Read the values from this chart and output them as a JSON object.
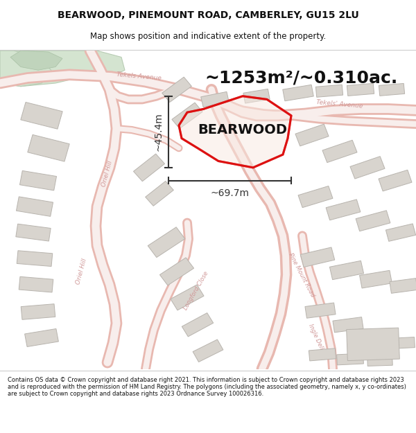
{
  "title": "BEARWOOD, PINEMOUNT ROAD, CAMBERLEY, GU15 2LU",
  "subtitle": "Map shows position and indicative extent of the property.",
  "footer": "Contains OS data © Crown copyright and database right 2021. This information is subject to Crown copyright and database rights 2023 and is reproduced with the permission of HM Land Registry. The polygons (including the associated geometry, namely x, y co-ordinates) are subject to Crown copyright and database rights 2023 Ordnance Survey 100026316.",
  "area_label": "~1253m²/~0.310ac.",
  "property_name": "BEARWOOD",
  "dim1_label": "~45.4m",
  "dim2_label": "~69.7m",
  "map_bg": "#ffffff",
  "road_outline_color": "#e8b8b0",
  "road_fill_color": "#f8eeec",
  "building_fill": "#d8d4ce",
  "building_edge": "#b8b4ae",
  "property_edge": "#dd1111",
  "property_fill": "none",
  "dim_color": "#333333",
  "text_color": "#111111",
  "green_fill": "#d4e4d0",
  "green_edge": "#b8ccb4",
  "road_label_color": "#cc9090",
  "area_label_fontsize": 18,
  "dim_fontsize": 10,
  "property_fontsize": 16
}
